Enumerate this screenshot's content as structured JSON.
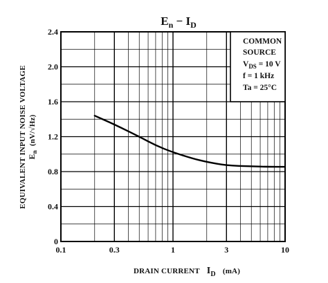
{
  "chart_data": {
    "type": "line",
    "title": {
      "main": "E",
      "sub1": "n",
      "sep": " − ",
      "main2": "I",
      "sub2": "D"
    },
    "xlabel": {
      "text": "DRAIN CURRENT",
      "sym": "I",
      "sub": "D",
      "unit": "(mA)"
    },
    "ylabel": {
      "line1": "EQUIVALENT INPUT NOISE VOLTAGE",
      "line2_sym": "E",
      "line2_sub": "n",
      "line2_unit": "(nV/√Hz)"
    },
    "x_scale": "log",
    "xlim": [
      0.1,
      10
    ],
    "ylim": [
      0,
      2.4
    ],
    "x_ticks": [
      "0.1",
      "0.3",
      "1",
      "3",
      "10"
    ],
    "x_tick_values": [
      0.1,
      0.3,
      1,
      3,
      10
    ],
    "y_ticks": [
      "0",
      "0.4",
      "0.8",
      "1.2",
      "1.6",
      "2.0",
      "2.4"
    ],
    "y_tick_values": [
      0,
      0.4,
      0.8,
      1.2,
      1.6,
      2.0,
      2.4
    ],
    "grid": true,
    "legend_placement": "top-right",
    "conditions": {
      "line1": "COMMON",
      "line2": "SOURCE",
      "vds": {
        "sym": "V",
        "sub": "DS",
        "val": " = 10 V"
      },
      "freq": "f = 1 kHz",
      "ta": "Ta = 25°C"
    },
    "series": [
      {
        "x": [
          0.2,
          0.3,
          0.5,
          0.7,
          1.0,
          1.5,
          2.0,
          3.0,
          5.0,
          7.0,
          10.0
        ],
        "y": [
          1.44,
          1.34,
          1.2,
          1.1,
          1.02,
          0.95,
          0.91,
          0.87,
          0.86,
          0.855,
          0.855
        ]
      }
    ]
  }
}
